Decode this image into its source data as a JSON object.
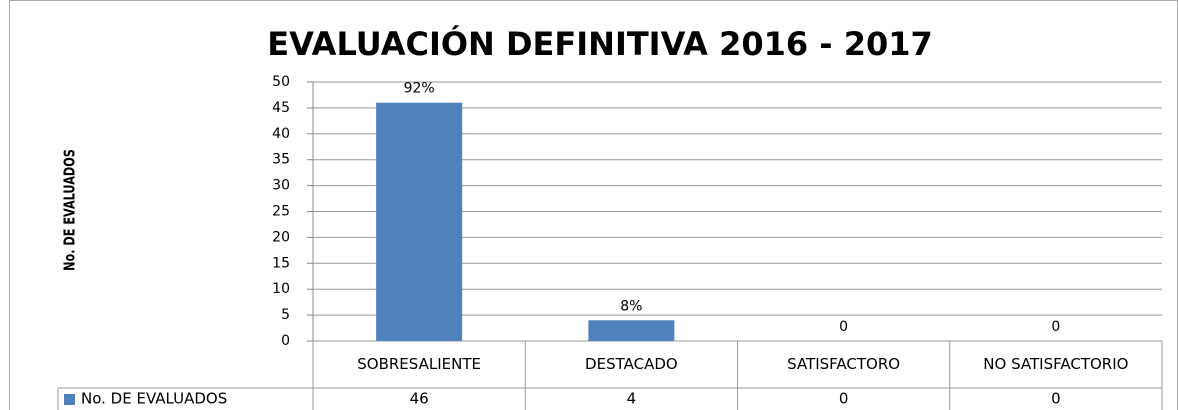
{
  "chart_data": {
    "type": "bar",
    "title": "EVALUACIÓN DEFINITIVA 2016 - 2017",
    "y_label": "No. DE EVALUADOS",
    "categories": [
      "SOBRESALIENTE",
      "DESTACADO",
      "SATISFACTORO",
      "NO SATISFACTORIO"
    ],
    "series": [
      {
        "name": "No. DE EVALUADOS",
        "color": "#4f81bd",
        "values": [
          46,
          4,
          0,
          0
        ]
      }
    ],
    "data_labels": [
      "92%",
      "8%",
      "0",
      "0"
    ],
    "ylim": [
      0,
      50
    ],
    "yticks": [
      0,
      5,
      10,
      15,
      20,
      25,
      30,
      35,
      40,
      45,
      50
    ],
    "grid": true,
    "data_table": true
  }
}
